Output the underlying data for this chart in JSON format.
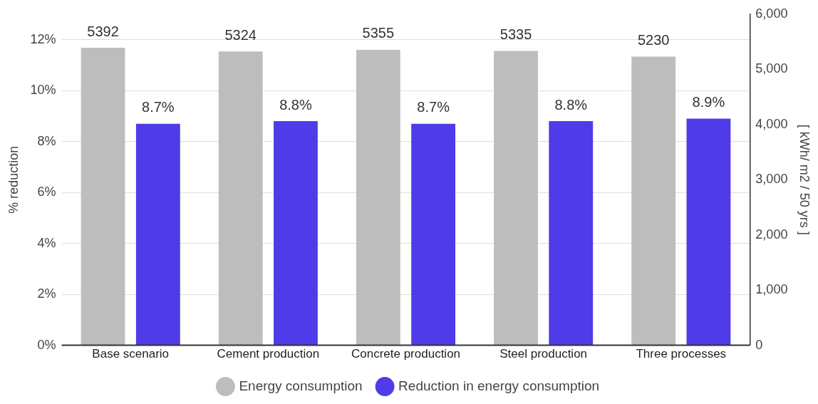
{
  "chart_data": {
    "type": "bar",
    "categories": [
      "Base scenario",
      "Cement production",
      "Concrete production",
      "Steel production",
      "Three processes"
    ],
    "series": [
      {
        "name": "Energy consumption",
        "color": "#bdbdbd",
        "axis": "y2",
        "values": [
          5392,
          5324,
          5355,
          5335,
          5230
        ],
        "value_labels": [
          "5392",
          "5324",
          "5355",
          "5335",
          "5230"
        ]
      },
      {
        "name": "Reduction in energy consumption",
        "color": "#4f3be8",
        "values": [
          8.7,
          8.8,
          8.7,
          8.8,
          8.9
        ],
        "value_labels": [
          "8.7%",
          "8.8%",
          "8.7%",
          "8.8%",
          "8.9%"
        ]
      }
    ],
    "ylabel": "% reduction",
    "y2label": "[ kWh/ m2 / 50 yrs ]",
    "ylim": [
      0,
      13
    ],
    "yticks": [
      {
        "value": 0,
        "label": "0%"
      },
      {
        "value": 2,
        "label": "2%"
      },
      {
        "value": 4,
        "label": "4%"
      },
      {
        "value": 6,
        "label": "6%"
      },
      {
        "value": 8,
        "label": "8%"
      },
      {
        "value": 10,
        "label": "10%"
      },
      {
        "value": 12,
        "label": "12%"
      }
    ],
    "y2lim": [
      0,
      6000
    ],
    "y2ticks": [
      {
        "value": 0,
        "label": "0"
      },
      {
        "value": 1000,
        "label": "1,000"
      },
      {
        "value": 2000,
        "label": "2,000"
      },
      {
        "value": 3000,
        "label": "3,000"
      },
      {
        "value": 4000,
        "label": "4,000"
      },
      {
        "value": 5000,
        "label": "5,000"
      },
      {
        "value": 6000,
        "label": "6,000"
      }
    ],
    "grid": "y",
    "legend": "bottom"
  }
}
